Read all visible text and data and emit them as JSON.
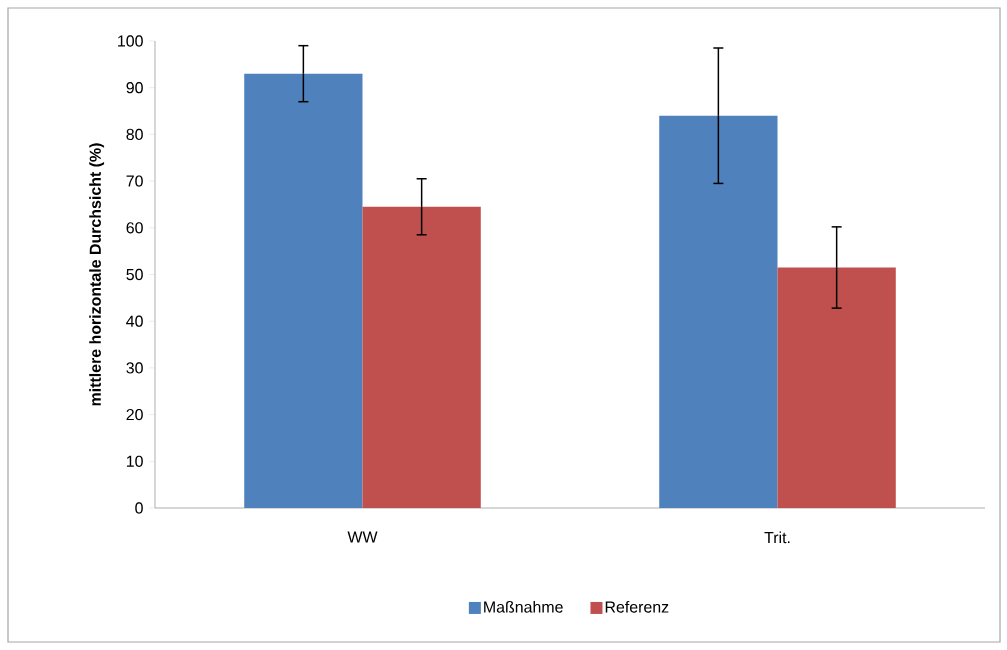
{
  "chart_data": {
    "type": "bar",
    "ylabel": "mittlere horizontale Durchsicht (%)",
    "categories": [
      "WW",
      "Trit."
    ],
    "series": [
      {
        "name": "Maßnahme",
        "color": "#4f81bd",
        "values": [
          93,
          84
        ],
        "errors": [
          6,
          14.5
        ]
      },
      {
        "name": "Referenz",
        "color": "#c0504d",
        "values": [
          64.5,
          51.5
        ],
        "errors": [
          6,
          8.7
        ]
      }
    ],
    "ylim": [
      0,
      100
    ],
    "yticks": [
      0,
      10,
      20,
      30,
      40,
      50,
      60,
      70,
      80,
      90,
      100
    ],
    "grid": false,
    "legend": "bottom"
  }
}
